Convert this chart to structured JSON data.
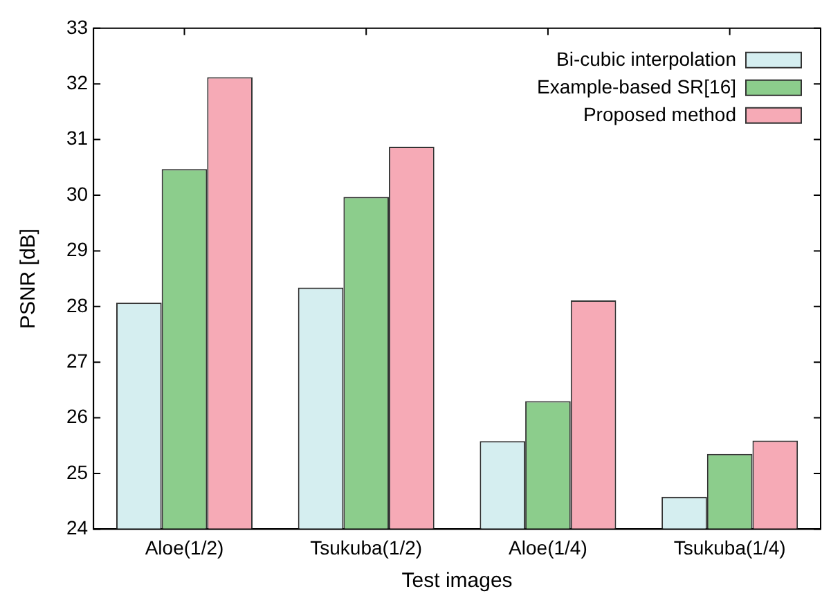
{
  "chart_data": {
    "type": "bar",
    "xlabel": "Test images",
    "ylabel": "PSNR [dB]",
    "categories": [
      "Aloe(1/2)",
      "Tsukuba(1/2)",
      "Aloe(1/4)",
      "Tsukuba(1/4)"
    ],
    "series": [
      {
        "name": "Bi-cubic interpolation",
        "color": "#d5eef0",
        "values": [
          28.07,
          28.34,
          25.58,
          24.58
        ]
      },
      {
        "name": "Example-based SR[16]",
        "color": "#8ccd8c",
        "values": [
          30.47,
          29.97,
          26.3,
          25.35
        ]
      },
      {
        "name": "Proposed method",
        "color": "#f6aab6",
        "values": [
          32.12,
          30.87,
          28.11,
          25.59
        ]
      }
    ],
    "ylim": [
      24,
      33
    ],
    "yticks": [
      24,
      25,
      26,
      27,
      28,
      29,
      30,
      31,
      32,
      33
    ],
    "grid": false,
    "legend": "top right"
  }
}
